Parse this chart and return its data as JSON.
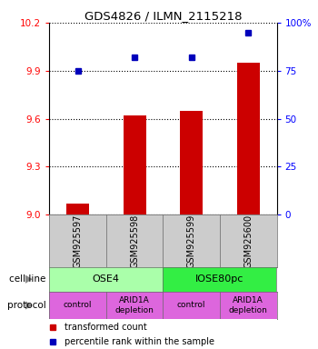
{
  "title": "GDS4826 / ILMN_2115218",
  "samples": [
    "GSM925597",
    "GSM925598",
    "GSM925599",
    "GSM925600"
  ],
  "bar_values": [
    9.07,
    9.62,
    9.65,
    9.95
  ],
  "dot_values": [
    75,
    82,
    82,
    95
  ],
  "ylim_left": [
    9.0,
    10.2
  ],
  "ylim_right": [
    0,
    100
  ],
  "yticks_left": [
    9.0,
    9.3,
    9.6,
    9.9,
    10.2
  ],
  "yticks_right": [
    0,
    25,
    50,
    75,
    100
  ],
  "ytick_labels_right": [
    "0",
    "25",
    "50",
    "75",
    "100%"
  ],
  "bar_color": "#cc0000",
  "dot_color": "#0000bb",
  "cell_line_labels": [
    "OSE4",
    "IOSE80pc"
  ],
  "cell_line_spans": [
    [
      0,
      2
    ],
    [
      2,
      4
    ]
  ],
  "cell_line_colors": [
    "#aaffaa",
    "#33ee44"
  ],
  "protocol_labels": [
    "control",
    "ARID1A\ndepletion",
    "control",
    "ARID1A\ndepletion"
  ],
  "protocol_color": "#dd66dd",
  "sample_box_color": "#cccccc",
  "legend_bar_label": "transformed count",
  "legend_dot_label": "percentile rank within the sample",
  "row_label_cell_line": "cell line",
  "row_label_protocol": "protocol",
  "grid_color": "#555555",
  "bar_width": 0.4
}
